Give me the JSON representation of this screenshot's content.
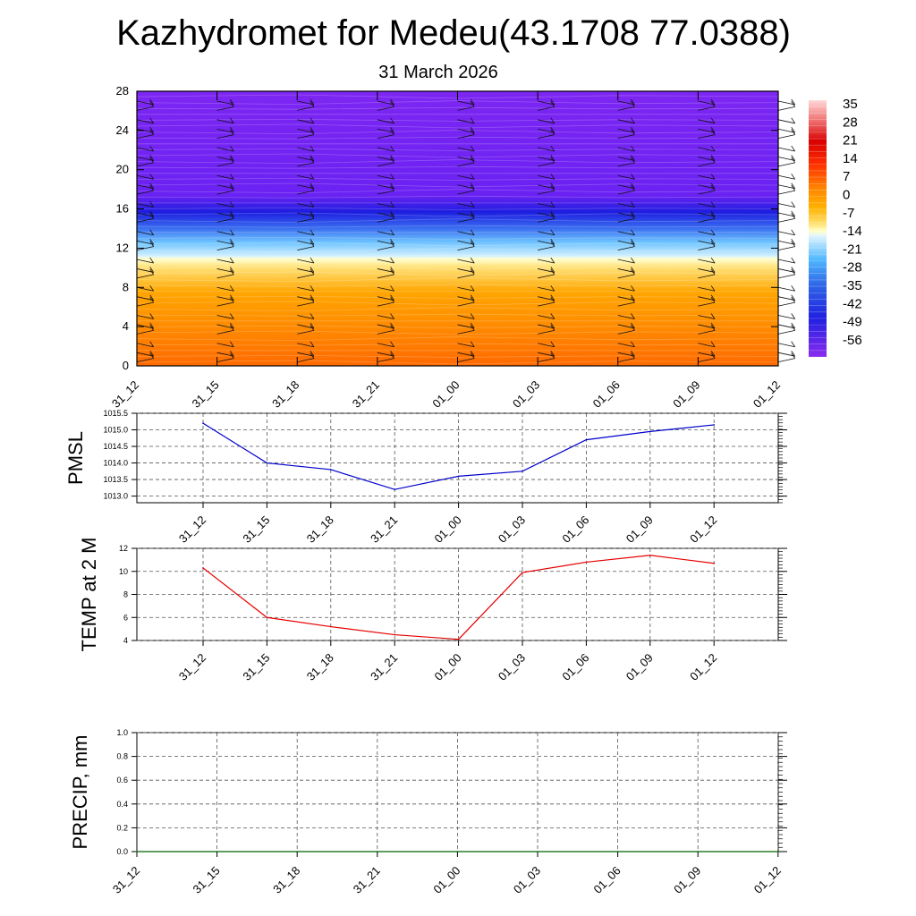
{
  "header": {
    "title": "Kazhydromet for Medeu(43.1708 77.0388)",
    "subtitle": "31 March 2026"
  },
  "chart_data": [
    {
      "type": "heatmap",
      "x_tick_labels": [
        "31_12",
        "31_15",
        "31_18",
        "31_21",
        "01_00",
        "01_03",
        "01_06",
        "01_09",
        "01_12"
      ],
      "y_ticks": [
        0,
        4,
        8,
        12,
        16,
        20,
        24,
        28
      ],
      "ylim": [
        0,
        28
      ],
      "colorbar_labels": [
        "35",
        "28",
        "21",
        "14",
        "7",
        "0",
        "-7",
        "-14",
        "-21",
        "-28",
        "-35",
        "-42",
        "-49",
        "-56"
      ],
      "vertical_temperature_profile": [
        {
          "level": 0,
          "value": 8
        },
        {
          "level": 4,
          "value": 6
        },
        {
          "level": 8,
          "value": 2
        },
        {
          "level": 10.8,
          "value": -4
        },
        {
          "level": 11,
          "value": -14
        },
        {
          "level": 12,
          "value": -21
        },
        {
          "level": 14,
          "value": -35
        },
        {
          "level": 16,
          "value": -49
        },
        {
          "level": 17.5,
          "value": -56
        },
        {
          "level": 28,
          "value": -60
        }
      ],
      "wind_barbs": true
    },
    {
      "type": "line",
      "ylabel": "PMSL",
      "x_tick_labels": [
        "31_12",
        "31_15",
        "31_18",
        "31_21",
        "01_00",
        "01_03",
        "01_06",
        "01_09",
        "01_12"
      ],
      "y_tick_labels": [
        "1015.5",
        "1015.0",
        "1014.5",
        "1014.0",
        "1013.5",
        "1013.0"
      ],
      "ylim": [
        1012.8,
        1015.5
      ],
      "series": [
        {
          "values": [
            1015.2,
            1014.0,
            1013.8,
            1013.2,
            1013.6,
            1013.75,
            1014.7,
            1014.95,
            1015.15
          ]
        }
      ],
      "color": "#0000cc",
      "grid": true
    },
    {
      "type": "line",
      "ylabel": "TEMP at 2 M",
      "x_tick_labels": [
        "31_12",
        "31_15",
        "31_18",
        "31_21",
        "01_00",
        "01_03",
        "01_06",
        "01_09",
        "01_12"
      ],
      "y_tick_labels": [
        "12",
        "10",
        "8",
        "6",
        "4"
      ],
      "ylim": [
        4,
        12
      ],
      "series": [
        {
          "values": [
            10.3,
            6.0,
            5.2,
            4.5,
            4.1,
            9.9,
            10.8,
            11.4,
            10.7
          ]
        }
      ],
      "color": "#e60000",
      "grid": true
    },
    {
      "type": "line",
      "ylabel": "PRECIP, mm",
      "x_tick_labels": [
        "31_12",
        "31_15",
        "31_18",
        "31_21",
        "01_00",
        "01_03",
        "01_06",
        "01_09",
        "01_12"
      ],
      "y_tick_labels": [
        "1.0",
        "0.8",
        "0.6",
        "0.4",
        "0.2",
        "0.0"
      ],
      "ylim": [
        0,
        1
      ],
      "series": [
        {
          "values": [
            0,
            0,
            0,
            0,
            0,
            0,
            0,
            0,
            0
          ]
        }
      ],
      "color": "#006400",
      "grid": true
    }
  ]
}
